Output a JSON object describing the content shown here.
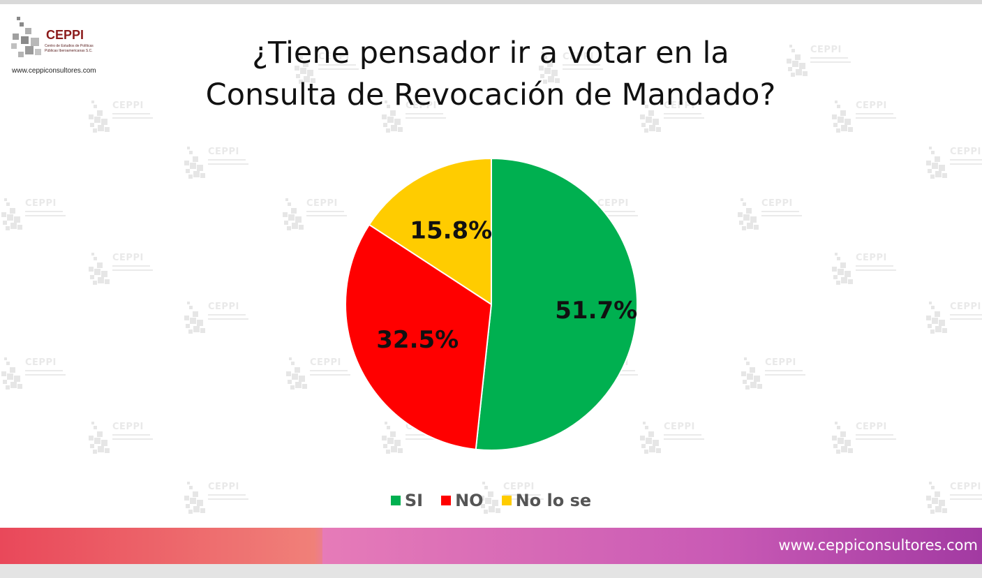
{
  "logo": {
    "name": "CEPPI",
    "line1": "Centro de Estudios de Políticas",
    "line2": "Públicas Iberoamericanas S.C.",
    "url": "www.ceppiconsultores.com"
  },
  "watermark": {
    "text": "CEPPI"
  },
  "footer": {
    "url": "www.ceppiconsultores.com"
  },
  "chart_data": {
    "type": "pie",
    "title_lines": [
      "¿Tiene pensador ir a votar en la",
      "Consulta de Revocación de Mandado?"
    ],
    "categories": [
      "SI",
      "NO",
      "No lo se"
    ],
    "values": [
      51.7,
      32.5,
      15.8
    ],
    "labels": [
      "51.7%",
      "32.5%",
      "15.8%"
    ],
    "colors": [
      "#00b050",
      "#ff0000",
      "#ffcc00"
    ],
    "legend_position": "bottom"
  }
}
